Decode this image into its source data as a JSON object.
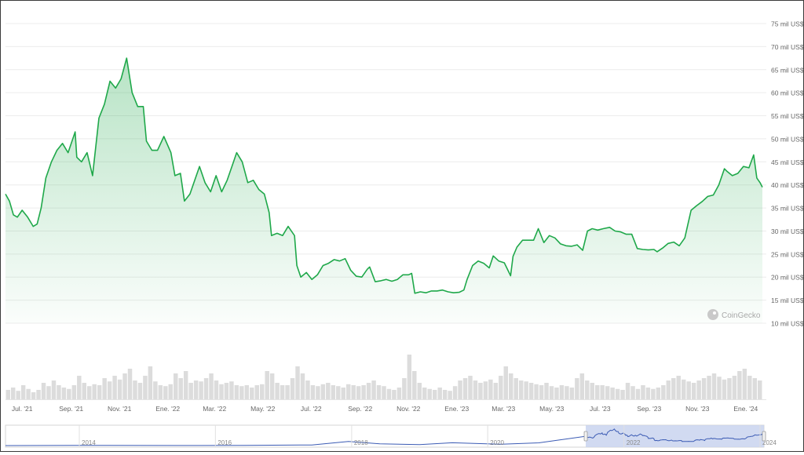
{
  "chart_data": {
    "type": "area",
    "title": "",
    "xlabel": "",
    "ylabel": "",
    "ylim": [
      10000,
      75000
    ],
    "y_unit_suffix": "mil US$",
    "y_ticks": [
      "75 mil US$",
      "70 mil US$",
      "65 mil US$",
      "60 mil US$",
      "55 mil US$",
      "50 mil US$",
      "45 mil US$",
      "40 mil US$",
      "35 mil US$",
      "30 mil US$",
      "25 mil US$",
      "20 mil US$",
      "15 mil US$",
      "10 mil US$"
    ],
    "y_tick_values": [
      75000,
      70000,
      65000,
      60000,
      55000,
      50000,
      45000,
      40000,
      35000,
      30000,
      25000,
      20000,
      15000,
      10000
    ],
    "x_ticks": [
      "Jul. '21",
      "Sep. '21",
      "Nov. '21",
      "Ene. '22",
      "Mar. '22",
      "May. '22",
      "Jul. '22",
      "Sep. '22",
      "Nov. '22",
      "Ene. '23",
      "Mar. '23",
      "May. '23",
      "Jul. '23",
      "Sep. '23",
      "Nov. '23",
      "Ene. '24"
    ],
    "x_tick_dates": [
      "2021-07-01",
      "2021-09-01",
      "2021-11-01",
      "2022-01-01",
      "2022-03-01",
      "2022-05-01",
      "2022-07-01",
      "2022-09-01",
      "2022-11-01",
      "2023-01-01",
      "2023-03-01",
      "2023-05-01",
      "2023-07-01",
      "2023-09-01",
      "2023-11-01",
      "2024-01-01"
    ],
    "x_range": [
      "2021-06-10",
      "2024-01-22"
    ],
    "grid": true,
    "legend": "none",
    "line_color": "#1fa84a",
    "series": [
      {
        "x": [
          "2021-06-10",
          "2021-06-15",
          "2021-06-20",
          "2021-06-25",
          "2021-07-01",
          "2021-07-08",
          "2021-07-15",
          "2021-07-20",
          "2021-07-25",
          "2021-07-31",
          "2021-08-07",
          "2021-08-14",
          "2021-08-21",
          "2021-08-28",
          "2021-09-06",
          "2021-09-08",
          "2021-09-14",
          "2021-09-21",
          "2021-09-28",
          "2021-10-06",
          "2021-10-13",
          "2021-10-20",
          "2021-10-27",
          "2021-11-03",
          "2021-11-10",
          "2021-11-17",
          "2021-11-24",
          "2021-12-01",
          "2021-12-05",
          "2021-12-12",
          "2021-12-19",
          "2021-12-27",
          "2022-01-05",
          "2022-01-10",
          "2022-01-17",
          "2022-01-22",
          "2022-01-29",
          "2022-02-05",
          "2022-02-10",
          "2022-02-17",
          "2022-02-24",
          "2022-03-03",
          "2022-03-10",
          "2022-03-17",
          "2022-03-24",
          "2022-03-29",
          "2022-04-05",
          "2022-04-12",
          "2022-04-19",
          "2022-04-26",
          "2022-05-03",
          "2022-05-09",
          "2022-05-12",
          "2022-05-19",
          "2022-05-26",
          "2022-06-02",
          "2022-06-10",
          "2022-06-13",
          "2022-06-18",
          "2022-06-25",
          "2022-07-02",
          "2022-07-09",
          "2022-07-16",
          "2022-07-23",
          "2022-07-30",
          "2022-08-06",
          "2022-08-13",
          "2022-08-20",
          "2022-08-27",
          "2022-09-03",
          "2022-09-10",
          "2022-09-13",
          "2022-09-20",
          "2022-09-27",
          "2022-10-04",
          "2022-10-11",
          "2022-10-18",
          "2022-10-25",
          "2022-11-01",
          "2022-11-05",
          "2022-11-09",
          "2022-11-16",
          "2022-11-23",
          "2022-11-30",
          "2022-12-07",
          "2022-12-14",
          "2022-12-21",
          "2022-12-28",
          "2023-01-04",
          "2023-01-10",
          "2023-01-14",
          "2023-01-21",
          "2023-01-28",
          "2023-02-04",
          "2023-02-11",
          "2023-02-16",
          "2023-02-23",
          "2023-03-02",
          "2023-03-10",
          "2023-03-13",
          "2023-03-18",
          "2023-03-25",
          "2023-04-01",
          "2023-04-08",
          "2023-04-14",
          "2023-04-21",
          "2023-04-28",
          "2023-05-05",
          "2023-05-12",
          "2023-05-19",
          "2023-05-26",
          "2023-06-02",
          "2023-06-09",
          "2023-06-15",
          "2023-06-21",
          "2023-06-28",
          "2023-07-05",
          "2023-07-13",
          "2023-07-20",
          "2023-07-27",
          "2023-08-03",
          "2023-08-10",
          "2023-08-17",
          "2023-08-24",
          "2023-08-31",
          "2023-09-07",
          "2023-09-11",
          "2023-09-18",
          "2023-09-25",
          "2023-10-02",
          "2023-10-09",
          "2023-10-16",
          "2023-10-20",
          "2023-10-24",
          "2023-10-31",
          "2023-11-07",
          "2023-11-14",
          "2023-11-21",
          "2023-11-28",
          "2023-12-05",
          "2023-12-08",
          "2023-12-15",
          "2023-12-22",
          "2023-12-29",
          "2024-01-05",
          "2024-01-11",
          "2024-01-15",
          "2024-01-19",
          "2024-01-22"
        ],
        "y": [
          38000,
          36500,
          33500,
          33000,
          34500,
          33000,
          31000,
          31500,
          35000,
          41500,
          45000,
          47500,
          49000,
          47000,
          51500,
          46000,
          45000,
          47000,
          42000,
          54500,
          57500,
          62500,
          61000,
          63000,
          67500,
          60000,
          57000,
          57000,
          49500,
          47500,
          47500,
          50500,
          47000,
          42000,
          42500,
          36500,
          38000,
          41500,
          44000,
          40500,
          38500,
          42000,
          38500,
          41000,
          44500,
          47000,
          45000,
          40500,
          41000,
          39000,
          38000,
          34000,
          29000,
          29500,
          29000,
          31000,
          29000,
          22500,
          20000,
          21000,
          19500,
          20500,
          22500,
          23000,
          23800,
          23500,
          24000,
          21500,
          20200,
          20000,
          21700,
          22200,
          19000,
          19200,
          19500,
          19100,
          19500,
          20500,
          20500,
          20800,
          16500,
          16800,
          16600,
          17000,
          17000,
          17200,
          16800,
          16600,
          16700,
          17200,
          19500,
          22500,
          23500,
          23000,
          22000,
          24600,
          23500,
          23100,
          20300,
          24500,
          26500,
          28000,
          28000,
          28000,
          30500,
          27500,
          29000,
          28500,
          27200,
          26800,
          26700,
          27000,
          25800,
          30000,
          30500,
          30200,
          30500,
          30800,
          30000,
          29800,
          29300,
          29300,
          26200,
          26000,
          25900,
          26000,
          25500,
          26300,
          27300,
          27600,
          26800,
          28500,
          31500,
          34500,
          35500,
          36400,
          37500,
          37800,
          40000,
          43500,
          43000,
          42000,
          42500,
          44000,
          43700,
          46500,
          41500,
          40500,
          39500
        ]
      }
    ],
    "volume": {
      "description_values": "relative daily volume bars",
      "relative": [
        0.2,
        0.25,
        0.18,
        0.3,
        0.22,
        0.15,
        0.2,
        0.35,
        0.28,
        0.4,
        0.3,
        0.25,
        0.22,
        0.3,
        0.5,
        0.35,
        0.28,
        0.32,
        0.3,
        0.45,
        0.38,
        0.5,
        0.42,
        0.55,
        0.65,
        0.4,
        0.35,
        0.5,
        0.7,
        0.38,
        0.3,
        0.28,
        0.32,
        0.55,
        0.45,
        0.6,
        0.35,
        0.4,
        0.38,
        0.45,
        0.55,
        0.4,
        0.32,
        0.35,
        0.38,
        0.3,
        0.28,
        0.3,
        0.25,
        0.3,
        0.32,
        0.6,
        0.55,
        0.35,
        0.3,
        0.3,
        0.45,
        0.7,
        0.55,
        0.4,
        0.3,
        0.28,
        0.32,
        0.35,
        0.3,
        0.28,
        0.25,
        0.32,
        0.3,
        0.28,
        0.3,
        0.35,
        0.4,
        0.3,
        0.28,
        0.22,
        0.2,
        0.25,
        0.45,
        0.95,
        0.6,
        0.35,
        0.25,
        0.22,
        0.2,
        0.25,
        0.2,
        0.18,
        0.28,
        0.4,
        0.45,
        0.5,
        0.4,
        0.35,
        0.38,
        0.42,
        0.35,
        0.5,
        0.7,
        0.55,
        0.45,
        0.4,
        0.38,
        0.35,
        0.32,
        0.3,
        0.35,
        0.28,
        0.25,
        0.3,
        0.28,
        0.25,
        0.45,
        0.55,
        0.4,
        0.35,
        0.3,
        0.3,
        0.28,
        0.25,
        0.22,
        0.2,
        0.35,
        0.28,
        0.22,
        0.3,
        0.25,
        0.22,
        0.25,
        0.3,
        0.4,
        0.45,
        0.5,
        0.42,
        0.38,
        0.35,
        0.4,
        0.45,
        0.5,
        0.55,
        0.48,
        0.42,
        0.45,
        0.5,
        0.6,
        0.65,
        0.5,
        0.45,
        0.4
      ]
    },
    "navigator": {
      "x_ticks": [
        "2014",
        "2016",
        "2018",
        "2020",
        "2022",
        "2024"
      ],
      "selected_range": [
        "2021-06-10",
        "2024-01-22"
      ]
    },
    "watermark": "CoinGecko"
  }
}
